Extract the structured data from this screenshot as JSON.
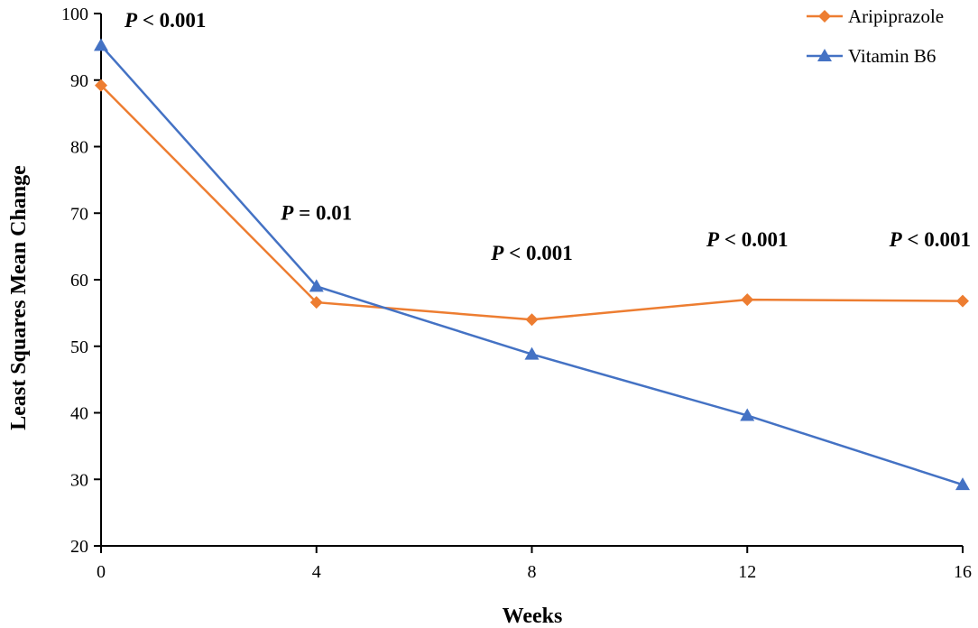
{
  "chart_data": {
    "type": "line",
    "title": "",
    "xlabel": "Weeks",
    "ylabel": "Least Squares Mean Change",
    "x": [
      0,
      4,
      8,
      12,
      16
    ],
    "xlim": [
      0,
      16
    ],
    "ylim": [
      20,
      100
    ],
    "yticks": [
      20,
      30,
      40,
      50,
      60,
      70,
      80,
      90,
      100
    ],
    "grid": false,
    "legend_position": "top-right",
    "series": [
      {
        "name": "Aripiprazole",
        "color": "#ED7D31",
        "marker": "diamond",
        "values": [
          89.2,
          56.6,
          54.0,
          57.0,
          56.8
        ]
      },
      {
        "name": "Vitamin B6",
        "color": "#4472C4",
        "marker": "triangle",
        "values": [
          95.2,
          59.0,
          48.8,
          39.6,
          29.2
        ]
      }
    ],
    "annotations": [
      {
        "x": 0,
        "y": 98,
        "prefix": "P",
        "rest": " < 0.001"
      },
      {
        "x": 4,
        "y": 69,
        "prefix": "P",
        "rest": " = 0.01"
      },
      {
        "x": 8,
        "y": 63,
        "prefix": "P",
        "rest": " < 0.001"
      },
      {
        "x": 12,
        "y": 65,
        "prefix": "P",
        "rest": " < 0.001"
      },
      {
        "x": 16,
        "y": 65,
        "prefix": "P",
        "rest": " < 0.001"
      }
    ]
  }
}
